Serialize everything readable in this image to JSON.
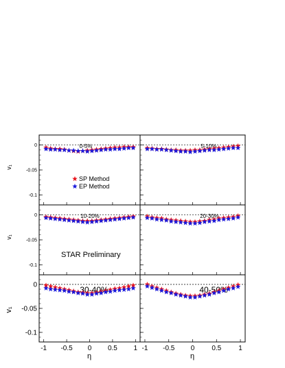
{
  "figure": {
    "ylabel": "v₁",
    "xlabel": "η",
    "legend": {
      "sp": "SP Method",
      "ep": "EP Method"
    },
    "preliminary": "STAR Preliminary",
    "colors": {
      "sp": "#e8141c",
      "ep": "#1a1adc",
      "frame": "#000000",
      "zero_line": "#000000"
    }
  },
  "chart_data": [
    {
      "type": "scatter",
      "panel": 1,
      "label": "0-5%",
      "xlim": [
        -1.1,
        1.1
      ],
      "ylim": [
        -0.12,
        0.02
      ],
      "yticks": [
        0,
        -0.05,
        -0.1
      ],
      "xticks": [],
      "series": [
        {
          "name": "SP Method",
          "x": [
            -0.95,
            -0.85,
            -0.75,
            -0.65,
            -0.55,
            -0.45,
            -0.35,
            -0.25,
            -0.15,
            -0.05,
            0.05,
            0.15,
            0.25,
            0.35,
            0.45,
            0.55,
            0.65,
            0.75,
            0.85,
            0.95
          ],
          "y": [
            -0.005,
            -0.007,
            -0.008,
            -0.008,
            -0.009,
            -0.011,
            -0.012,
            -0.013,
            -0.012,
            -0.011,
            -0.01,
            -0.009,
            -0.008,
            -0.007,
            -0.006,
            -0.005,
            -0.005,
            -0.004,
            -0.004,
            -0.004
          ]
        },
        {
          "name": "EP Method",
          "x": [
            -0.95,
            -0.85,
            -0.75,
            -0.65,
            -0.55,
            -0.45,
            -0.35,
            -0.25,
            -0.15,
            -0.05,
            0.05,
            0.15,
            0.25,
            0.35,
            0.45,
            0.55,
            0.65,
            0.75,
            0.85,
            0.95
          ],
          "y": [
            -0.008,
            -0.009,
            -0.009,
            -0.01,
            -0.01,
            -0.011,
            -0.011,
            -0.012,
            -0.012,
            -0.013,
            -0.012,
            -0.011,
            -0.01,
            -0.009,
            -0.009,
            -0.008,
            -0.008,
            -0.007,
            -0.006,
            -0.006
          ]
        }
      ]
    },
    {
      "type": "scatter",
      "panel": 2,
      "label": "5-10%",
      "xlim": [
        -1.1,
        1.1
      ],
      "ylim": [
        -0.12,
        0.02
      ],
      "yticks": [],
      "xticks": [],
      "series": [
        {
          "name": "SP Method",
          "x": [
            -0.95,
            -0.85,
            -0.75,
            -0.65,
            -0.55,
            -0.45,
            -0.35,
            -0.25,
            -0.15,
            -0.05,
            0.05,
            0.15,
            0.25,
            0.35,
            0.45,
            0.55,
            0.65,
            0.75,
            0.85,
            0.95
          ],
          "y": [
            -0.006,
            -0.007,
            -0.008,
            -0.008,
            -0.009,
            -0.01,
            -0.01,
            -0.011,
            -0.011,
            -0.011,
            -0.01,
            -0.01,
            -0.009,
            -0.008,
            -0.007,
            -0.006,
            -0.005,
            -0.004,
            -0.003,
            -0.002
          ]
        },
        {
          "name": "EP Method",
          "x": [
            -0.95,
            -0.85,
            -0.75,
            -0.65,
            -0.55,
            -0.45,
            -0.35,
            -0.25,
            -0.15,
            -0.05,
            0.05,
            0.15,
            0.25,
            0.35,
            0.45,
            0.55,
            0.65,
            0.75,
            0.85,
            0.95
          ],
          "y": [
            -0.008,
            -0.008,
            -0.009,
            -0.009,
            -0.01,
            -0.011,
            -0.012,
            -0.013,
            -0.013,
            -0.014,
            -0.013,
            -0.012,
            -0.011,
            -0.01,
            -0.01,
            -0.009,
            -0.008,
            -0.007,
            -0.006,
            -0.006
          ]
        }
      ]
    },
    {
      "type": "scatter",
      "panel": 3,
      "label": "10-20%",
      "xlim": [
        -1.1,
        1.1
      ],
      "ylim": [
        -0.12,
        0.02
      ],
      "yticks": [
        0,
        -0.05,
        -0.1
      ],
      "xticks": [],
      "series": [
        {
          "name": "SP Method",
          "x": [
            -0.95,
            -0.85,
            -0.75,
            -0.65,
            -0.55,
            -0.45,
            -0.35,
            -0.25,
            -0.15,
            -0.05,
            0.05,
            0.15,
            0.25,
            0.35,
            0.45,
            0.55,
            0.65,
            0.75,
            0.85,
            0.95
          ],
          "y": [
            -0.004,
            -0.005,
            -0.006,
            -0.007,
            -0.008,
            -0.009,
            -0.01,
            -0.011,
            -0.012,
            -0.012,
            -0.012,
            -0.011,
            -0.01,
            -0.009,
            -0.008,
            -0.007,
            -0.006,
            -0.005,
            -0.004,
            -0.003
          ]
        },
        {
          "name": "EP Method",
          "x": [
            -0.95,
            -0.85,
            -0.75,
            -0.65,
            -0.55,
            -0.45,
            -0.35,
            -0.25,
            -0.15,
            -0.05,
            0.05,
            0.15,
            0.25,
            0.35,
            0.45,
            0.55,
            0.65,
            0.75,
            0.85,
            0.95
          ],
          "y": [
            -0.006,
            -0.007,
            -0.008,
            -0.009,
            -0.01,
            -0.011,
            -0.012,
            -0.013,
            -0.014,
            -0.015,
            -0.014,
            -0.013,
            -0.012,
            -0.011,
            -0.01,
            -0.009,
            -0.008,
            -0.007,
            -0.006,
            -0.005
          ]
        }
      ]
    },
    {
      "type": "scatter",
      "panel": 4,
      "label": "20-30%",
      "xlim": [
        -1.1,
        1.1
      ],
      "ylim": [
        -0.12,
        0.02
      ],
      "yticks": [],
      "xticks": [],
      "series": [
        {
          "name": "SP Method",
          "x": [
            -0.95,
            -0.85,
            -0.75,
            -0.65,
            -0.55,
            -0.45,
            -0.35,
            -0.25,
            -0.15,
            -0.05,
            0.05,
            0.15,
            0.25,
            0.35,
            0.45,
            0.55,
            0.65,
            0.75,
            0.85,
            0.95
          ],
          "y": [
            -0.003,
            -0.005,
            -0.006,
            -0.007,
            -0.009,
            -0.01,
            -0.011,
            -0.012,
            -0.013,
            -0.014,
            -0.014,
            -0.013,
            -0.012,
            -0.01,
            -0.009,
            -0.007,
            -0.006,
            -0.005,
            -0.004,
            -0.002
          ]
        },
        {
          "name": "EP Method",
          "x": [
            -0.95,
            -0.85,
            -0.75,
            -0.65,
            -0.55,
            -0.45,
            -0.35,
            -0.25,
            -0.15,
            -0.05,
            0.05,
            0.15,
            0.25,
            0.35,
            0.45,
            0.55,
            0.65,
            0.75,
            0.85,
            0.95
          ],
          "y": [
            -0.006,
            -0.007,
            -0.009,
            -0.01,
            -0.011,
            -0.013,
            -0.014,
            -0.015,
            -0.016,
            -0.017,
            -0.017,
            -0.016,
            -0.014,
            -0.013,
            -0.012,
            -0.01,
            -0.009,
            -0.008,
            -0.007,
            -0.005
          ]
        }
      ]
    },
    {
      "type": "scatter",
      "panel": 5,
      "label": "30-40%",
      "xlim": [
        -1.1,
        1.1
      ],
      "ylim": [
        -0.12,
        0.02
      ],
      "yticks": [
        0,
        -0.05,
        -0.1
      ],
      "xticks": [
        -1,
        -0.5,
        0,
        0.5,
        1
      ],
      "series": [
        {
          "name": "SP Method",
          "x": [
            -0.95,
            -0.85,
            -0.75,
            -0.65,
            -0.55,
            -0.45,
            -0.35,
            -0.25,
            -0.15,
            -0.05,
            0.05,
            0.15,
            0.25,
            0.35,
            0.45,
            0.55,
            0.65,
            0.75,
            0.85,
            0.95
          ],
          "y": [
            -0.002,
            -0.004,
            -0.006,
            -0.008,
            -0.01,
            -0.012,
            -0.014,
            -0.016,
            -0.017,
            -0.018,
            -0.018,
            -0.017,
            -0.015,
            -0.013,
            -0.011,
            -0.009,
            -0.008,
            -0.006,
            -0.004,
            -0.002
          ]
        },
        {
          "name": "EP Method",
          "x": [
            -0.95,
            -0.85,
            -0.75,
            -0.65,
            -0.55,
            -0.45,
            -0.35,
            -0.25,
            -0.15,
            -0.05,
            0.05,
            0.15,
            0.25,
            0.35,
            0.45,
            0.55,
            0.65,
            0.75,
            0.85,
            0.95
          ],
          "y": [
            -0.008,
            -0.01,
            -0.011,
            -0.012,
            -0.013,
            -0.015,
            -0.016,
            -0.018,
            -0.019,
            -0.021,
            -0.021,
            -0.019,
            -0.018,
            -0.016,
            -0.015,
            -0.013,
            -0.012,
            -0.011,
            -0.01,
            -0.008
          ]
        }
      ]
    },
    {
      "type": "scatter",
      "panel": 6,
      "label": "40-50%",
      "xlim": [
        -1.1,
        1.1
      ],
      "ylim": [
        -0.12,
        0.02
      ],
      "yticks": [],
      "xticks": [
        -1,
        -0.5,
        0,
        0.5,
        1
      ],
      "series": [
        {
          "name": "SP Method",
          "x": [
            -0.95,
            -0.85,
            -0.75,
            -0.65,
            -0.55,
            -0.45,
            -0.35,
            -0.25,
            -0.15,
            -0.05,
            0.05,
            0.15,
            0.25,
            0.35,
            0.45,
            0.55,
            0.65,
            0.75,
            0.85,
            0.95
          ],
          "y": [
            0.0,
            -0.004,
            -0.007,
            -0.01,
            -0.013,
            -0.016,
            -0.019,
            -0.021,
            -0.023,
            -0.024,
            -0.024,
            -0.023,
            -0.021,
            -0.019,
            -0.016,
            -0.013,
            -0.01,
            -0.007,
            -0.004,
            -0.001
          ]
        },
        {
          "name": "EP Method",
          "x": [
            -0.95,
            -0.85,
            -0.75,
            -0.65,
            -0.55,
            -0.45,
            -0.35,
            -0.25,
            -0.15,
            -0.05,
            0.05,
            0.15,
            0.25,
            0.35,
            0.45,
            0.55,
            0.65,
            0.75,
            0.85,
            0.95
          ],
          "y": [
            -0.004,
            -0.007,
            -0.01,
            -0.013,
            -0.016,
            -0.018,
            -0.021,
            -0.023,
            -0.025,
            -0.027,
            -0.027,
            -0.025,
            -0.023,
            -0.021,
            -0.018,
            -0.016,
            -0.013,
            -0.01,
            -0.008,
            -0.005
          ]
        }
      ]
    }
  ]
}
